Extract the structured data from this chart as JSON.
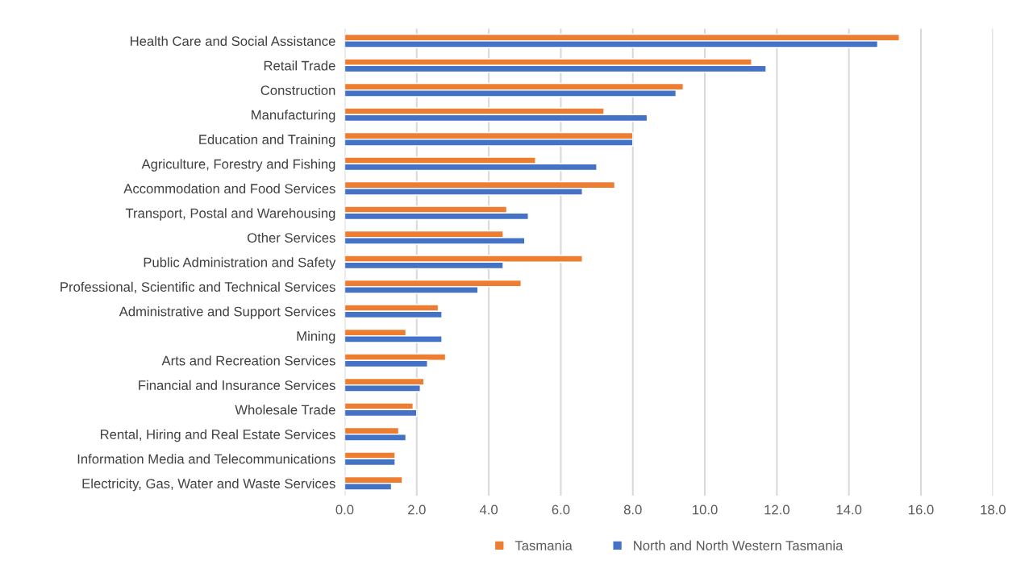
{
  "chart_data": {
    "type": "bar",
    "orientation": "horizontal",
    "categories": [
      "Health Care and Social Assistance",
      "Retail Trade",
      "Construction",
      "Manufacturing",
      "Education and Training",
      "Agriculture, Forestry and Fishing",
      "Accommodation and Food Services",
      "Transport, Postal and Warehousing",
      "Other Services",
      "Public Administration and Safety",
      "Professional, Scientific and Technical Services",
      "Administrative and Support Services",
      "Mining",
      "Arts and Recreation Services",
      "Financial and Insurance Services",
      "Wholesale Trade",
      "Rental, Hiring and Real Estate Services",
      "Information Media and Telecommunications",
      "Electricity, Gas, Water and Waste Services"
    ],
    "series": [
      {
        "name": "Tasmania",
        "color": "#ed7d31",
        "values": [
          15.4,
          11.3,
          9.4,
          7.2,
          8.0,
          5.3,
          7.5,
          4.5,
          4.4,
          6.6,
          4.9,
          2.6,
          1.7,
          2.8,
          2.2,
          1.9,
          1.5,
          1.4,
          1.6
        ]
      },
      {
        "name": "North and North Western Tasmania",
        "color": "#4472c4",
        "values": [
          14.8,
          11.7,
          9.2,
          8.4,
          8.0,
          7.0,
          6.6,
          5.1,
          5.0,
          4.4,
          3.7,
          2.7,
          2.7,
          2.3,
          2.1,
          2.0,
          1.7,
          1.4,
          1.3
        ]
      }
    ],
    "xlim": [
      0,
      18
    ],
    "xticks": [
      {
        "value": 0,
        "label": "0.0"
      },
      {
        "value": 2,
        "label": "2.0"
      },
      {
        "value": 4,
        "label": "4.0"
      },
      {
        "value": 6,
        "label": "6.0"
      },
      {
        "value": 8,
        "label": "8.0"
      },
      {
        "value": 10,
        "label": "10.0"
      },
      {
        "value": 12,
        "label": "12.0"
      },
      {
        "value": 14,
        "label": "14.0"
      },
      {
        "value": 16,
        "label": "16.0"
      },
      {
        "value": 18,
        "label": "18.0"
      }
    ],
    "grid": "x",
    "legend": "bottom"
  }
}
